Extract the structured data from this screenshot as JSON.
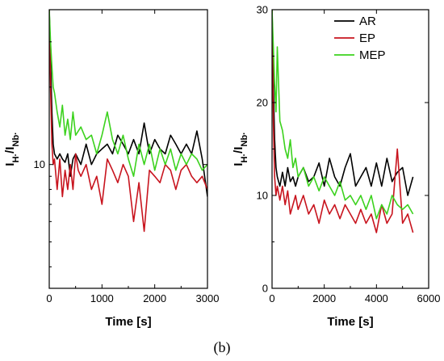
{
  "figure_caption": "(b)",
  "series_colors": {
    "AR": "#000000",
    "EP": "#c8141e",
    "MEP": "#3cd21e"
  },
  "chart_data": [
    {
      "type": "line",
      "ylabel": "I_H·/I_Nb·",
      "xlabel": "Time [s]",
      "xlim": [
        0,
        3000
      ],
      "ylim": [
        3.3,
        40
      ],
      "yscale": "log",
      "xticks": [
        "0",
        "1000",
        "2000",
        "3000"
      ],
      "yticks": [
        "10"
      ],
      "legend": false,
      "series": [
        {
          "name": "AR",
          "x": [
            0,
            25,
            50,
            75,
            100,
            150,
            200,
            250,
            300,
            350,
            400,
            450,
            500,
            600,
            700,
            800,
            900,
            1000,
            1100,
            1200,
            1300,
            1400,
            1500,
            1600,
            1700,
            1800,
            1900,
            2000,
            2100,
            2200,
            2300,
            2400,
            2500,
            2600,
            2700,
            2800,
            2900,
            3000
          ],
          "y": [
            40,
            26,
            16,
            12,
            11,
            10.5,
            11,
            10.5,
            10.2,
            11,
            9,
            10.5,
            11,
            10,
            12,
            10,
            11,
            11.5,
            12,
            11,
            13,
            12,
            11,
            12.5,
            11,
            14.5,
            11,
            12.5,
            11.5,
            11,
            13,
            12,
            11,
            12,
            11,
            13.5,
            10.5,
            7.5
          ]
        },
        {
          "name": "EP",
          "x": [
            0,
            25,
            50,
            75,
            100,
            150,
            200,
            250,
            300,
            350,
            400,
            450,
            500,
            550,
            600,
            700,
            800,
            900,
            1000,
            1100,
            1200,
            1300,
            1400,
            1500,
            1600,
            1700,
            1800,
            1900,
            2000,
            2100,
            2200,
            2300,
            2400,
            2500,
            2600,
            2700,
            2800,
            2900,
            3000
          ],
          "y": [
            40,
            20,
            12,
            10,
            10.5,
            8,
            10.5,
            7.5,
            9.5,
            8,
            10,
            8,
            11,
            9.5,
            9,
            10,
            8,
            9,
            7,
            10.5,
            9.5,
            8.5,
            10,
            9,
            6,
            8.5,
            5.5,
            9.5,
            9,
            8.5,
            10,
            9.5,
            8,
            9.5,
            10,
            9,
            8.5,
            9,
            8
          ]
        },
        {
          "name": "MEP",
          "x": [
            0,
            25,
            50,
            75,
            100,
            150,
            200,
            250,
            300,
            350,
            400,
            450,
            500,
            600,
            700,
            800,
            900,
            1000,
            1100,
            1200,
            1300,
            1400,
            1500,
            1600,
            1700,
            1800,
            1900,
            2000,
            2100,
            2200,
            2300,
            2400,
            2500,
            2600,
            2700,
            2800,
            2900,
            3000
          ],
          "y": [
            40,
            30,
            24,
            20,
            19,
            16,
            14,
            17,
            13,
            15,
            12.5,
            16,
            13,
            14,
            12.5,
            13,
            11,
            13,
            16,
            12.5,
            11,
            13,
            10.5,
            9,
            12,
            10,
            12,
            9.5,
            11.5,
            10,
            11.5,
            9.5,
            11,
            10,
            11,
            10.5,
            9.5,
            10
          ]
        }
      ]
    },
    {
      "type": "line",
      "ylabel": "I_H·/I_Nb·",
      "xlabel": "Time [s]",
      "xlim": [
        0,
        6000
      ],
      "ylim": [
        0,
        30
      ],
      "yscale": "linear",
      "xticks": [
        "0",
        "2000",
        "4000",
        "6000"
      ],
      "yticks": [
        "0",
        "10",
        "20",
        "30"
      ],
      "legend": true,
      "legend_position": "top-right",
      "series": [
        {
          "name": "AR",
          "x": [
            0,
            50,
            100,
            150,
            200,
            300,
            400,
            500,
            600,
            700,
            800,
            900,
            1000,
            1200,
            1400,
            1600,
            1800,
            2000,
            2200,
            2400,
            2600,
            2800,
            3000,
            3200,
            3400,
            3600,
            3800,
            4000,
            4200,
            4400,
            4600,
            4800,
            5000,
            5200,
            5400
          ],
          "y": [
            30,
            22,
            16,
            13,
            12,
            11,
            12.5,
            11,
            13,
            11.5,
            12,
            11,
            12,
            13,
            11.5,
            12,
            13.5,
            11,
            14,
            12,
            11,
            13,
            14.5,
            11,
            12,
            13,
            11,
            13.5,
            11,
            14,
            11.5,
            12.5,
            13,
            10,
            12
          ]
        },
        {
          "name": "EP",
          "x": [
            0,
            50,
            100,
            150,
            200,
            300,
            400,
            500,
            600,
            700,
            800,
            900,
            1000,
            1200,
            1400,
            1600,
            1800,
            2000,
            2200,
            2400,
            2600,
            2800,
            3000,
            3200,
            3400,
            3600,
            3800,
            4000,
            4200,
            4400,
            4600,
            4800,
            5000,
            5200,
            5400
          ],
          "y": [
            30,
            18,
            12,
            10,
            11,
            9.5,
            11,
            9,
            10.5,
            8,
            9,
            10,
            8.5,
            10,
            8,
            9,
            7,
            9.5,
            8,
            9,
            7.5,
            9,
            8,
            7,
            8.5,
            7,
            8,
            6,
            9,
            7,
            8,
            15,
            7,
            8,
            6
          ]
        },
        {
          "name": "MEP",
          "x": [
            0,
            50,
            100,
            150,
            200,
            300,
            400,
            500,
            600,
            700,
            800,
            900,
            1000,
            1200,
            1400,
            1600,
            1800,
            2000,
            2200,
            2400,
            2600,
            2800,
            3000,
            3200,
            3400,
            3600,
            3800,
            4000,
            4200,
            4400,
            4600,
            4800,
            5000,
            5200,
            5400
          ],
          "y": [
            30,
            26,
            22,
            19,
            26,
            18,
            17,
            15,
            14,
            16,
            13,
            14,
            12,
            13,
            11,
            12,
            10.5,
            12,
            11,
            10,
            11.5,
            9.5,
            10,
            9,
            10,
            8.5,
            10,
            7.5,
            9,
            8,
            10,
            9,
            8.5,
            9,
            8
          ]
        }
      ]
    }
  ]
}
